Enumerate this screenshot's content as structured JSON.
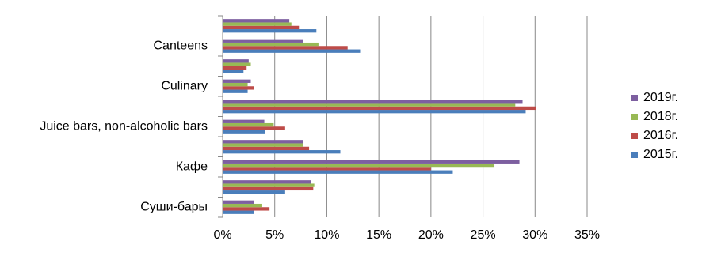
{
  "chart_data": {
    "type": "hbar",
    "categories": [
      "Суши-бары",
      null,
      "Кафе",
      null,
      "Juice bars, non-alcoholic bars",
      null,
      "Culinary",
      null,
      "Canteens",
      null
    ],
    "series": [
      {
        "name": "2015г.",
        "color": "#4a7ebb",
        "values": [
          3.0,
          6.0,
          22.1,
          11.3,
          4.1,
          29.1,
          2.4,
          2.0,
          13.2,
          9.0
        ]
      },
      {
        "name": "2016г.",
        "color": "#be4b48",
        "values": [
          4.5,
          8.7,
          20.0,
          8.3,
          6.0,
          30.1,
          3.0,
          2.3,
          12.0,
          7.4
        ]
      },
      {
        "name": "2018г.",
        "color": "#98b954",
        "values": [
          3.8,
          8.8,
          26.1,
          7.7,
          4.9,
          28.1,
          2.4,
          2.7,
          9.2,
          6.6
        ]
      },
      {
        "name": "2019г.",
        "color": "#7d5fa0",
        "values": [
          3.0,
          8.5,
          28.5,
          7.7,
          4.0,
          28.8,
          2.7,
          2.5,
          7.7,
          6.4
        ]
      }
    ],
    "xlim": [
      0,
      35
    ],
    "xticks": [
      {
        "value": 0,
        "label": "0%"
      },
      {
        "value": 5,
        "label": "5%"
      },
      {
        "value": 10,
        "label": "10%"
      },
      {
        "value": 15,
        "label": "15%"
      },
      {
        "value": 20,
        "label": "20%"
      },
      {
        "value": 25,
        "label": "25%"
      },
      {
        "value": 30,
        "label": "30%"
      },
      {
        "value": 35,
        "label": "35%"
      }
    ],
    "grid": true,
    "legend": "right"
  }
}
